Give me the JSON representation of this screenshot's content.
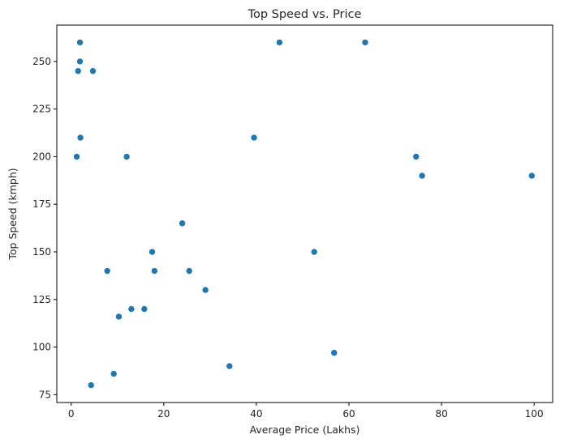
{
  "chart_data": {
    "type": "scatter",
    "title": "Top Speed vs. Price",
    "xlabel": "Average Price (Lakhs)",
    "ylabel": "Top Speed (kmph)",
    "xlim": [
      -3.1,
      104.0
    ],
    "ylim": [
      70.9,
      269.1
    ],
    "xticks": [
      0,
      20,
      40,
      60,
      80,
      100
    ],
    "yticks": [
      75,
      100,
      125,
      150,
      175,
      200,
      225,
      250
    ],
    "grid": false,
    "marker_color": "#1f77b4",
    "points": [
      {
        "x": 1.9,
        "y": 260
      },
      {
        "x": 1.9,
        "y": 250
      },
      {
        "x": 1.5,
        "y": 245
      },
      {
        "x": 4.7,
        "y": 245
      },
      {
        "x": 2.0,
        "y": 210
      },
      {
        "x": 1.2,
        "y": 200
      },
      {
        "x": 12.0,
        "y": 200
      },
      {
        "x": 45.0,
        "y": 260
      },
      {
        "x": 63.5,
        "y": 260
      },
      {
        "x": 39.5,
        "y": 210
      },
      {
        "x": 74.5,
        "y": 200
      },
      {
        "x": 75.8,
        "y": 190
      },
      {
        "x": 99.5,
        "y": 190
      },
      {
        "x": 24.0,
        "y": 165
      },
      {
        "x": 17.5,
        "y": 150
      },
      {
        "x": 52.5,
        "y": 150
      },
      {
        "x": 7.8,
        "y": 140
      },
      {
        "x": 18.0,
        "y": 140
      },
      {
        "x": 25.5,
        "y": 140
      },
      {
        "x": 29.0,
        "y": 130
      },
      {
        "x": 13.0,
        "y": 120
      },
      {
        "x": 15.8,
        "y": 120
      },
      {
        "x": 10.3,
        "y": 116
      },
      {
        "x": 56.8,
        "y": 97
      },
      {
        "x": 34.2,
        "y": 90
      },
      {
        "x": 9.2,
        "y": 86
      },
      {
        "x": 4.3,
        "y": 80
      }
    ]
  }
}
